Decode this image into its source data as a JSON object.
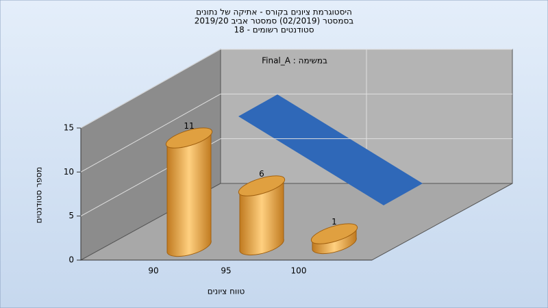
{
  "chart_data": {
    "type": "bar",
    "title": "היסטוגרמת ציונים בקורס - אתיקה של נתונים",
    "subtitle": "בסמסטר  (02/2019)  סמסטר אביב 2019/20",
    "subtitle2": "סטודנטים רשומים - 18",
    "annotation": "במשימה : Final_A",
    "categories": [
      "90",
      "95",
      "100"
    ],
    "values": [
      11,
      6,
      1
    ],
    "color": "#e0a040",
    "ylim": [
      0,
      15
    ],
    "yticks": [
      0,
      5,
      10,
      15
    ],
    "grid": true,
    "ylabel": "מספר סטודנטים",
    "xlabel": "טווח ציונים"
  }
}
